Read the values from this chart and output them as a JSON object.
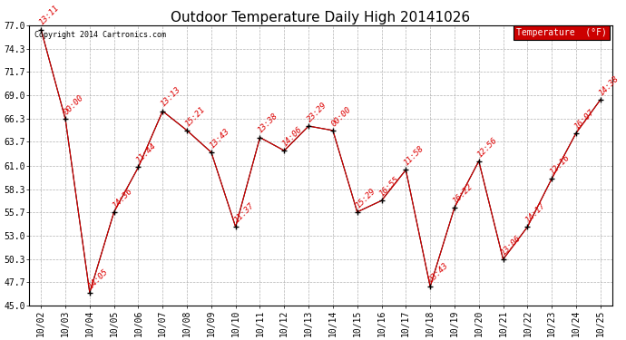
{
  "title": "Outdoor Temperature Daily High 20141026",
  "copyright": "Copyright 2014 Cartronics.com",
  "legend_label": "Temperature  (°F)",
  "x_labels": [
    "10/02",
    "10/03",
    "10/04",
    "10/05",
    "10/06",
    "10/07",
    "10/08",
    "10/09",
    "10/10",
    "10/11",
    "10/12",
    "10/13",
    "10/14",
    "10/15",
    "10/16",
    "10/17",
    "10/18",
    "10/19",
    "10/20",
    "10/21",
    "10/22",
    "10/23",
    "10/24",
    "10/25"
  ],
  "y_values": [
    76.5,
    66.3,
    46.5,
    55.7,
    60.8,
    67.2,
    65.0,
    62.5,
    54.0,
    64.2,
    62.7,
    65.5,
    65.0,
    55.7,
    57.0,
    60.5,
    47.2,
    56.2,
    61.5,
    50.3,
    54.0,
    59.5,
    64.7,
    68.5
  ],
  "time_labels": [
    "13:11",
    "00:00",
    "14:05",
    "14:36",
    "11:44",
    "13:13",
    "15:21",
    "13:43",
    "11:37",
    "13:38",
    "14:06",
    "23:29",
    "00:00",
    "15:29",
    "16:55",
    "11:58",
    "03:43",
    "16:22",
    "12:56",
    "13:06",
    "14:17",
    "12:16",
    "16:07",
    "14:38"
  ],
  "yticks": [
    45.0,
    47.7,
    50.3,
    53.0,
    55.7,
    58.3,
    61.0,
    63.7,
    66.3,
    69.0,
    71.7,
    74.3,
    77.0
  ],
  "ylim": [
    45.0,
    77.0
  ],
  "line_color": "#dd0000",
  "marker_color": "black",
  "bg_color": "#ffffff",
  "grid_color": "#aaaaaa",
  "title_fontsize": 11,
  "tick_fontsize": 7,
  "annotation_fontsize": 6.5,
  "annotation_color": "#dd0000",
  "legend_bg": "#cc0000",
  "legend_text_color": "white"
}
